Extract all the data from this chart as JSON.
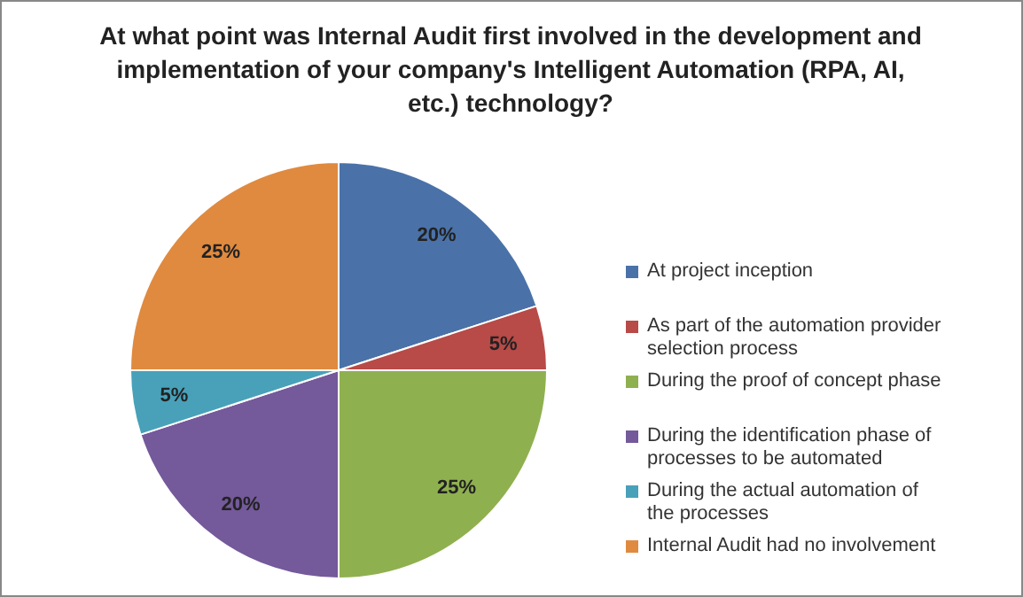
{
  "chart_data": {
    "type": "pie",
    "title": "At what point was Internal Audit first involved in the development and implementation of your company's Intelligent Automation (RPA, AI, etc.) technology?",
    "categories": [
      "At project inception",
      "As part of the automation provider selection process",
      "During the proof of concept phase",
      "During the identification phase of processes to be automated",
      "During the actual automation of the processes",
      "Internal Audit had no involvement"
    ],
    "values": [
      20,
      5,
      25,
      20,
      5,
      25
    ],
    "colors": [
      "#4a72a9",
      "#b84a47",
      "#8fb04f",
      "#74599b",
      "#48a1b9",
      "#e08a3f"
    ],
    "value_labels": [
      "20%",
      "5%",
      "25%",
      "20%",
      "5%",
      "25%"
    ],
    "legend": "right"
  }
}
